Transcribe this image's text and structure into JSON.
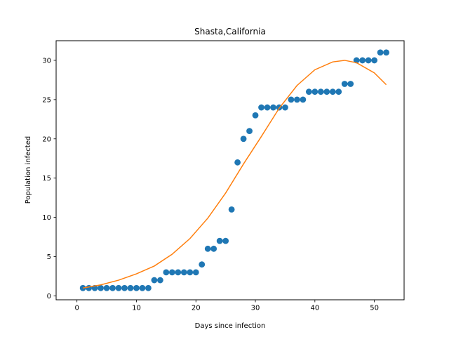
{
  "chart_data": {
    "type": "scatter",
    "title": "Shasta,California",
    "xlabel": "Days since infection",
    "ylabel": "Population infected",
    "xlim": [
      -3.5,
      55
    ],
    "ylim": [
      -0.5,
      32.5
    ],
    "xticks": [
      0,
      10,
      20,
      30,
      40,
      50
    ],
    "yticks": [
      0,
      5,
      10,
      15,
      20,
      25,
      30
    ],
    "grid": false,
    "series": [
      {
        "kind": "scatter",
        "color": "#1f77b4",
        "x": [
          1,
          2,
          3,
          4,
          5,
          6,
          7,
          8,
          9,
          10,
          11,
          12,
          13,
          14,
          15,
          16,
          17,
          18,
          19,
          20,
          21,
          22,
          23,
          24,
          25,
          26,
          27,
          28,
          29,
          30,
          31,
          32,
          33,
          34,
          35,
          36,
          37,
          38,
          39,
          40,
          41,
          42,
          43,
          44,
          45,
          46,
          47,
          48,
          49,
          50,
          51,
          52
        ],
        "y": [
          1,
          1,
          1,
          1,
          1,
          1,
          1,
          1,
          1,
          1,
          1,
          1,
          2,
          2,
          3,
          3,
          3,
          3,
          3,
          3,
          4,
          6,
          6,
          7,
          7,
          11,
          17,
          20,
          21,
          23,
          24,
          24,
          24,
          24,
          24,
          25,
          25,
          25,
          26,
          26,
          26,
          26,
          26,
          26,
          27,
          27,
          30,
          30,
          30,
          30,
          31,
          31
        ]
      },
      {
        "kind": "line",
        "color": "#ff7f0e",
        "x": [
          1,
          4,
          7,
          10,
          13,
          16,
          19,
          22,
          25,
          28,
          31,
          34,
          37,
          40,
          43,
          45,
          47,
          50,
          52
        ],
        "y": [
          1.0,
          1.4,
          2.0,
          2.8,
          3.8,
          5.3,
          7.3,
          9.9,
          13.1,
          16.8,
          20.3,
          23.9,
          26.8,
          28.8,
          29.8,
          30.0,
          29.7,
          28.4,
          26.9
        ]
      }
    ]
  }
}
